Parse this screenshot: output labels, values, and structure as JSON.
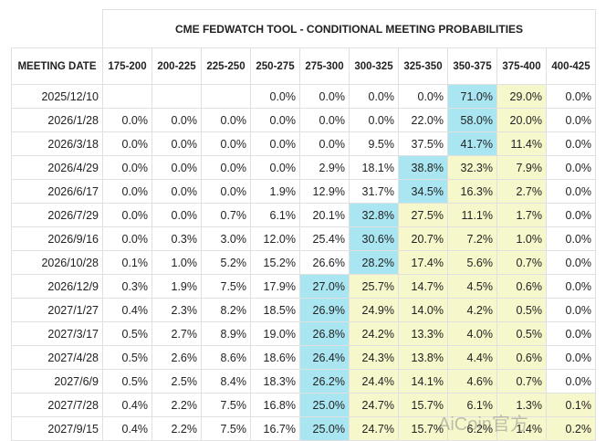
{
  "header": {
    "title": "CME FEDWATCH TOOL - CONDITIONAL MEETING PROBABILITIES"
  },
  "table": {
    "columns": [
      "MEETING DATE",
      "175-200",
      "200-225",
      "225-250",
      "250-275",
      "275-300",
      "300-325",
      "325-350",
      "350-375",
      "375-400",
      "400-425"
    ],
    "rows": [
      [
        "2025/12/10",
        null,
        null,
        null,
        "0.0%",
        "0.0%",
        "0.0%",
        "0.0%",
        "71.0%",
        "29.0%",
        "0.0%"
      ],
      [
        "2026/1/28",
        "0.0%",
        "0.0%",
        "0.0%",
        "0.0%",
        "0.0%",
        "0.0%",
        "22.0%",
        "58.0%",
        "20.0%",
        "0.0%"
      ],
      [
        "2026/3/18",
        "0.0%",
        "0.0%",
        "0.0%",
        "0.0%",
        "0.0%",
        "9.5%",
        "37.5%",
        "41.7%",
        "11.4%",
        "0.0%"
      ],
      [
        "2026/4/29",
        "0.0%",
        "0.0%",
        "0.0%",
        "0.0%",
        "2.9%",
        "18.1%",
        "38.8%",
        "32.3%",
        "7.9%",
        "0.0%"
      ],
      [
        "2026/6/17",
        "0.0%",
        "0.0%",
        "0.0%",
        "1.9%",
        "12.9%",
        "31.7%",
        "34.5%",
        "16.3%",
        "2.7%",
        "0.0%"
      ],
      [
        "2026/7/29",
        "0.0%",
        "0.0%",
        "0.7%",
        "6.1%",
        "20.1%",
        "32.8%",
        "27.5%",
        "11.1%",
        "1.7%",
        "0.0%"
      ],
      [
        "2026/9/16",
        "0.0%",
        "0.3%",
        "3.0%",
        "12.0%",
        "25.4%",
        "30.6%",
        "20.7%",
        "7.2%",
        "1.0%",
        "0.0%"
      ],
      [
        "2026/10/28",
        "0.1%",
        "1.0%",
        "5.2%",
        "15.2%",
        "26.6%",
        "28.2%",
        "17.4%",
        "5.6%",
        "0.7%",
        "0.0%"
      ],
      [
        "2026/12/9",
        "0.3%",
        "1.9%",
        "7.5%",
        "17.9%",
        "27.0%",
        "25.7%",
        "14.7%",
        "4.5%",
        "0.6%",
        "0.0%"
      ],
      [
        "2027/1/27",
        "0.4%",
        "2.3%",
        "8.2%",
        "18.5%",
        "26.9%",
        "24.9%",
        "14.0%",
        "4.2%",
        "0.5%",
        "0.0%"
      ],
      [
        "2027/3/17",
        "0.5%",
        "2.7%",
        "8.9%",
        "19.0%",
        "26.8%",
        "24.2%",
        "13.3%",
        "4.0%",
        "0.5%",
        "0.0%"
      ],
      [
        "2027/4/28",
        "0.5%",
        "2.6%",
        "8.6%",
        "18.6%",
        "26.4%",
        "24.3%",
        "13.8%",
        "4.4%",
        "0.6%",
        "0.0%"
      ],
      [
        "2027/6/9",
        "0.5%",
        "2.5%",
        "8.4%",
        "18.3%",
        "26.2%",
        "24.4%",
        "14.1%",
        "4.6%",
        "0.7%",
        "0.0%"
      ],
      [
        "2027/7/28",
        "0.4%",
        "2.2%",
        "7.5%",
        "16.8%",
        "25.0%",
        "24.7%",
        "15.7%",
        "6.1%",
        "1.3%",
        "0.1%"
      ],
      [
        "2027/9/15",
        "0.4%",
        "2.2%",
        "7.5%",
        "16.7%",
        "25.0%",
        "24.7%",
        "15.7%",
        "6.2%",
        "1.4%",
        "0.2%"
      ]
    ]
  },
  "watermark": "AiCoin官方"
}
